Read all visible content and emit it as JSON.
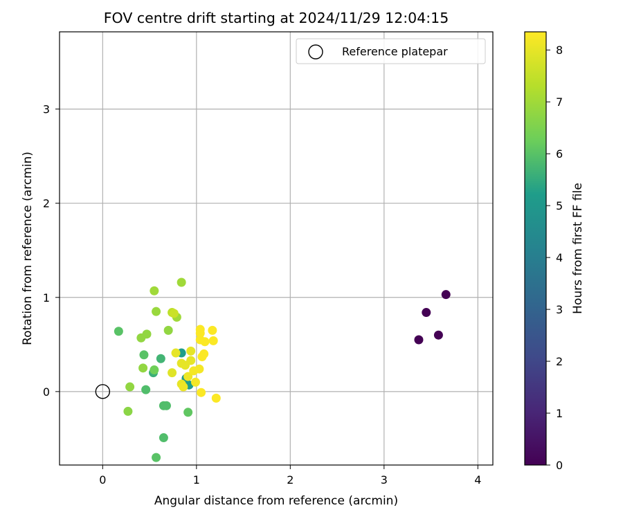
{
  "chart_data": {
    "type": "scatter",
    "title": "FOV centre drift starting at 2024/11/29 12:04:15",
    "xlabel": "Angular distance from reference (arcmin)",
    "ylabel": "Rotation from reference (arcmin)",
    "xlim": [
      -0.46,
      4.16
    ],
    "ylim": [
      -0.78,
      3.82
    ],
    "xticks": [
      0,
      1,
      2,
      3,
      4
    ],
    "yticks": [
      0,
      1,
      2,
      3
    ],
    "grid": true,
    "legend": {
      "position": "top-right",
      "entries": [
        "Reference platepar"
      ]
    },
    "reference": {
      "x": 0,
      "y": 0
    },
    "colorbar": {
      "label": "Hours from first FF file",
      "range": [
        0,
        8.35
      ],
      "ticks": [
        0,
        1,
        2,
        3,
        4,
        5,
        6,
        7,
        8
      ],
      "colormap": [
        "#440154",
        "#482777",
        "#3f4a8a",
        "#31678e",
        "#26838f",
        "#1f9d8a",
        "#6cce5a",
        "#b6de2b",
        "#fee825"
      ]
    },
    "points": [
      {
        "x": 3.45,
        "y": 0.84,
        "h": 0.0
      },
      {
        "x": 3.66,
        "y": 1.03,
        "h": 0.0
      },
      {
        "x": 3.37,
        "y": 0.55,
        "h": 0.0
      },
      {
        "x": 3.58,
        "y": 0.6,
        "h": 0.0
      },
      {
        "x": 0.84,
        "y": 0.41,
        "h": 5.2
      },
      {
        "x": 0.89,
        "y": 0.14,
        "h": 5.0
      },
      {
        "x": 0.92,
        "y": 0.07,
        "h": 5.2
      },
      {
        "x": 0.54,
        "y": 0.2,
        "h": 5.6
      },
      {
        "x": 0.62,
        "y": 0.35,
        "h": 5.7
      },
      {
        "x": 0.17,
        "y": 0.64,
        "h": 6.0
      },
      {
        "x": 0.46,
        "y": 0.02,
        "h": 5.9
      },
      {
        "x": 0.44,
        "y": 0.39,
        "h": 6.0
      },
      {
        "x": 0.65,
        "y": -0.15,
        "h": 5.9
      },
      {
        "x": 0.68,
        "y": -0.15,
        "h": 5.9
      },
      {
        "x": 0.65,
        "y": -0.49,
        "h": 5.9
      },
      {
        "x": 0.57,
        "y": -0.7,
        "h": 6.0
      },
      {
        "x": 0.91,
        "y": -0.22,
        "h": 6.1
      },
      {
        "x": 0.55,
        "y": 0.23,
        "h": 6.3
      },
      {
        "x": 0.27,
        "y": -0.21,
        "h": 6.7
      },
      {
        "x": 0.29,
        "y": 0.05,
        "h": 6.8
      },
      {
        "x": 0.43,
        "y": 0.25,
        "h": 6.8
      },
      {
        "x": 0.41,
        "y": 0.57,
        "h": 6.8
      },
      {
        "x": 0.47,
        "y": 0.61,
        "h": 6.8
      },
      {
        "x": 0.7,
        "y": 0.65,
        "h": 6.8
      },
      {
        "x": 0.57,
        "y": 0.85,
        "h": 6.9
      },
      {
        "x": 0.55,
        "y": 1.07,
        "h": 7.0
      },
      {
        "x": 0.84,
        "y": 1.16,
        "h": 7.0
      },
      {
        "x": 0.79,
        "y": 0.79,
        "h": 7.0
      },
      {
        "x": 0.74,
        "y": 0.84,
        "h": 7.4
      },
      {
        "x": 0.76,
        "y": 0.83,
        "h": 7.6
      },
      {
        "x": 0.74,
        "y": 0.2,
        "h": 7.9
      },
      {
        "x": 0.78,
        "y": 0.41,
        "h": 8.0
      },
      {
        "x": 0.84,
        "y": 0.3,
        "h": 8.0
      },
      {
        "x": 0.84,
        "y": 0.08,
        "h": 8.0
      },
      {
        "x": 0.88,
        "y": 0.28,
        "h": 8.0
      },
      {
        "x": 0.94,
        "y": 0.33,
        "h": 8.0
      },
      {
        "x": 0.94,
        "y": 0.43,
        "h": 8.0
      },
      {
        "x": 0.86,
        "y": 0.05,
        "h": 8.1
      },
      {
        "x": 0.91,
        "y": 0.16,
        "h": 8.1
      },
      {
        "x": 0.97,
        "y": 0.22,
        "h": 8.2
      },
      {
        "x": 0.99,
        "y": 0.1,
        "h": 8.2
      },
      {
        "x": 1.03,
        "y": 0.24,
        "h": 8.2
      },
      {
        "x": 1.05,
        "y": -0.01,
        "h": 8.3
      },
      {
        "x": 1.06,
        "y": 0.37,
        "h": 8.3
      },
      {
        "x": 1.08,
        "y": 0.4,
        "h": 8.3
      },
      {
        "x": 1.04,
        "y": 0.55,
        "h": 8.3
      },
      {
        "x": 1.04,
        "y": 0.62,
        "h": 8.3
      },
      {
        "x": 1.04,
        "y": 0.66,
        "h": 8.3
      },
      {
        "x": 1.09,
        "y": 0.53,
        "h": 8.3
      },
      {
        "x": 1.17,
        "y": 0.65,
        "h": 8.3
      },
      {
        "x": 1.18,
        "y": 0.54,
        "h": 8.3
      },
      {
        "x": 1.21,
        "y": -0.07,
        "h": 8.3
      }
    ]
  }
}
